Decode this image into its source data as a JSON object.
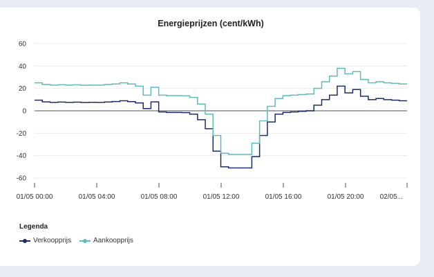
{
  "chart_data": {
    "type": "line",
    "title": "Energieprijzen (cent/kWh)",
    "xlabel": "",
    "ylabel": "",
    "ylim": [
      -60,
      60
    ],
    "yticks": [
      -60,
      -40,
      -20,
      0,
      20,
      40,
      60
    ],
    "xticks": [
      "01/05 00:00",
      "01/05 04:00",
      "01/05 08:00",
      "01/05 12:00",
      "01/05 16:00",
      "01/05 20:00",
      "02/05..."
    ],
    "x_hours": [
      0,
      0.5,
      1,
      1.5,
      2,
      2.5,
      3,
      3.5,
      4,
      4.5,
      5,
      5.5,
      6,
      6.5,
      7,
      7.5,
      8,
      8.5,
      9,
      9.5,
      10,
      10.5,
      11,
      11.5,
      12,
      12.5,
      13,
      13.5,
      14,
      14.5,
      15,
      15.5,
      16,
      16.5,
      17,
      17.5,
      18,
      18.5,
      19,
      19.5,
      20,
      20.5,
      21,
      21.5,
      22,
      22.5,
      23,
      23.5,
      24
    ],
    "grid": true,
    "legend_position": "bottom-left",
    "series": [
      {
        "name": "Verkoopprijs",
        "color": "#1b2a6b",
        "values": [
          9.5,
          8,
          7.5,
          7.8,
          7.5,
          7.7,
          7.4,
          7.6,
          7.5,
          7.9,
          8.3,
          9,
          8.2,
          7,
          2,
          8,
          -1,
          -1.5,
          -1.5,
          -1.6,
          -3,
          -8,
          -16,
          -36,
          -50,
          -51,
          -51,
          -51,
          -41,
          -22,
          -10,
          -3,
          -1.5,
          -1,
          -0.5,
          0,
          5,
          10,
          14,
          22,
          16,
          19,
          13,
          10,
          11,
          10,
          9.5,
          9,
          9
        ]
      },
      {
        "name": "Aankoopprijs",
        "color": "#5bbcbd",
        "values": [
          25,
          23.5,
          23,
          23.3,
          23,
          23.2,
          22.8,
          23,
          23,
          23.5,
          24,
          25,
          24,
          22,
          14,
          21,
          14,
          13.5,
          13.5,
          13.4,
          12,
          6,
          -3,
          -22,
          -38,
          -39,
          -39,
          -39,
          -29,
          -9,
          4,
          11,
          13.5,
          14,
          14.5,
          15,
          20,
          26,
          31,
          38,
          33,
          35,
          28,
          25,
          26,
          25,
          24.5,
          24,
          24
        ]
      }
    ]
  },
  "legend": {
    "title": "Legenda",
    "items": [
      {
        "label": "Verkoopprijs",
        "color": "#1b2a6b"
      },
      {
        "label": "Aankoopprijs",
        "color": "#5bbcbd"
      }
    ]
  }
}
